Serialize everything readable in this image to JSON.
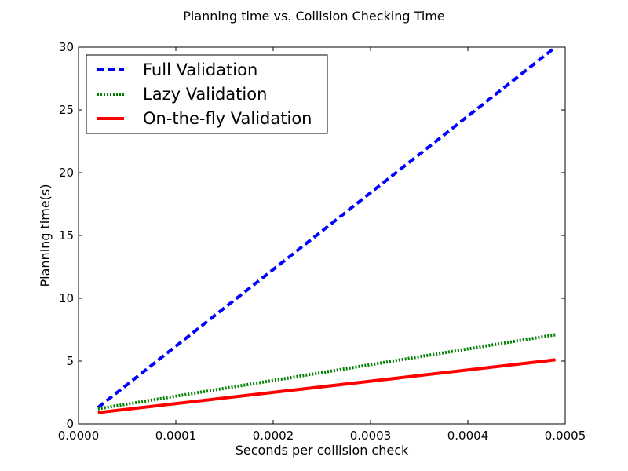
{
  "chart_data": {
    "type": "line",
    "title": "Planning time vs. Collision Checking Time",
    "xlabel": "Seconds per collision check",
    "ylabel": "Planning time(s)",
    "xlim": [
      0.0,
      0.0005
    ],
    "ylim": [
      0,
      30
    ],
    "xticks": [
      0.0,
      0.0001,
      0.0002,
      0.0003,
      0.0004,
      0.0005
    ],
    "xtick_labels": [
      "0.0000",
      "0.0001",
      "0.0002",
      "0.0003",
      "0.0004",
      "0.0005"
    ],
    "yticks": [
      0,
      5,
      10,
      15,
      20,
      25,
      30
    ],
    "ytick_labels": [
      "0",
      "5",
      "10",
      "15",
      "20",
      "25",
      "30"
    ],
    "grid": false,
    "legend_position": "top-left",
    "series": [
      {
        "name": "Full Validation",
        "color": "#0000ff",
        "style": "dashed",
        "x": [
          2e-05,
          0.00049
        ],
        "y": [
          1.3,
          30.0
        ]
      },
      {
        "name": "Lazy Validation",
        "color": "#008000",
        "style": "dotted",
        "x": [
          2e-05,
          0.00049
        ],
        "y": [
          1.2,
          7.1
        ]
      },
      {
        "name": "On-the-fly Validation",
        "color": "#ff0000",
        "style": "solid",
        "x": [
          2e-05,
          0.00049
        ],
        "y": [
          0.9,
          5.1
        ]
      }
    ]
  }
}
